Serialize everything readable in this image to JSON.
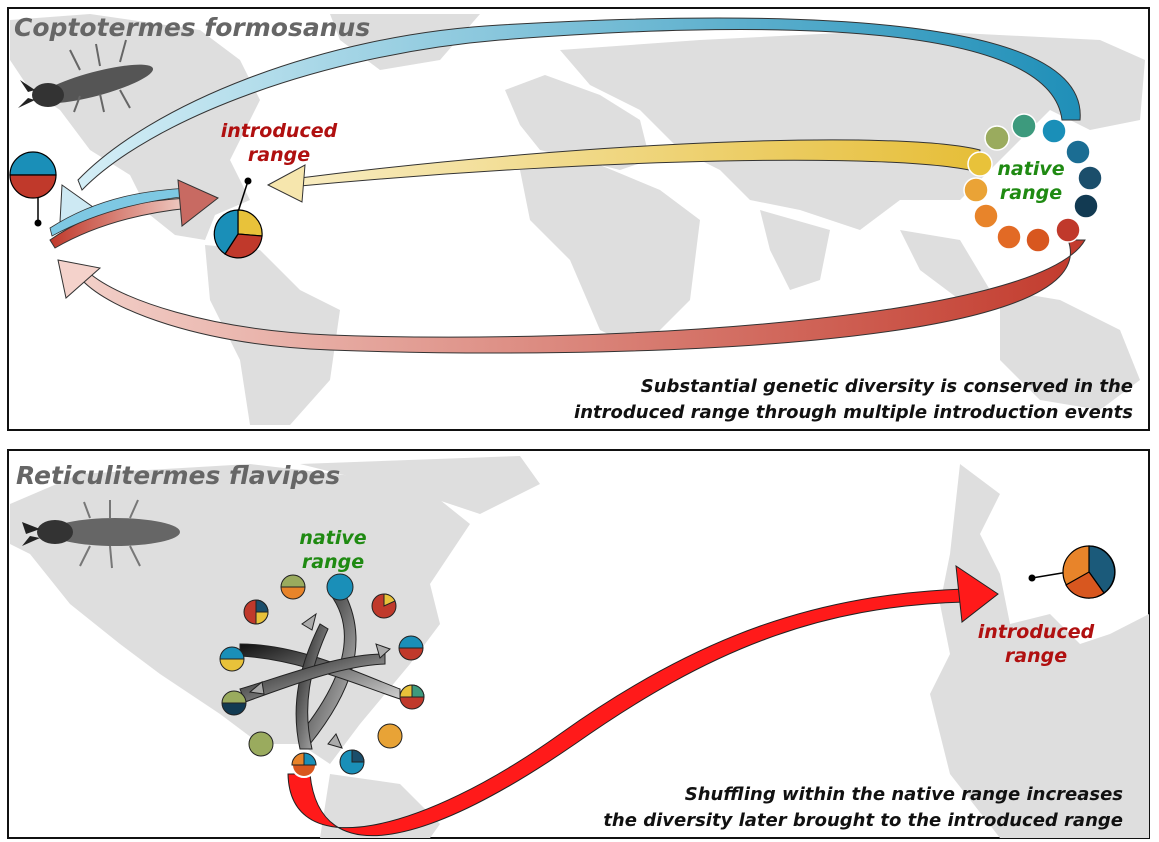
{
  "panels": [
    {
      "species": "Coptotermes formosanus",
      "native_label": [
        "native",
        "range"
      ],
      "introduced_label": [
        "introduced",
        "range"
      ],
      "caption": [
        "Substantial genetic diversity is conserved in the",
        "introduced range through multiple introduction events"
      ]
    },
    {
      "species": "Reticulitermes flavipes",
      "native_label": [
        "native",
        "range"
      ],
      "introduced_label": [
        "introduced",
        "range"
      ],
      "caption": [
        "Shuffling within the native range increases",
        "the diversity later brought to the introduced range"
      ]
    }
  ],
  "colors": {
    "blue": "#1a8fb8",
    "red": "#c0392b",
    "yellow": "#e8c23a",
    "orange": "#e8842a",
    "dark_orange": "#d8571f",
    "olive": "#9aab5e",
    "teal": "#3d9a7d",
    "navy": "#1b4e6b",
    "dark_navy": "#123a52",
    "native_label": "#1f8a12",
    "introduced_label": "#b01010",
    "map_land": "#dedede"
  }
}
